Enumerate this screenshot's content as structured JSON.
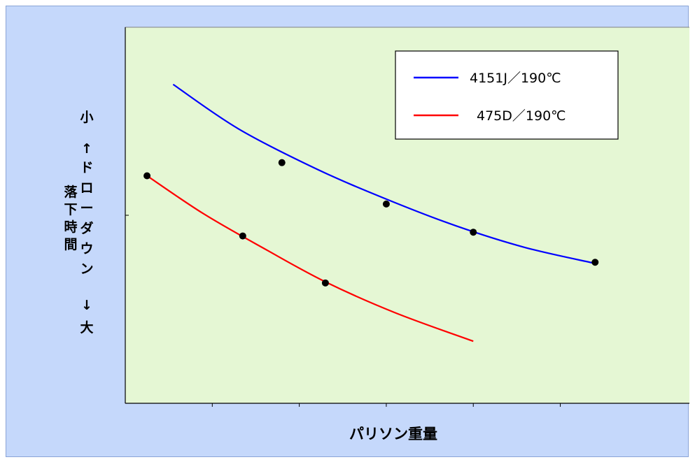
{
  "chart_data": {
    "type": "line",
    "title": "",
    "xlabel": "パリソン重量",
    "ylabel": {
      "top": "小",
      "bottom": "大",
      "arrow_up": "↑",
      "arrow_down": "↓",
      "axis_name": "ドローダウン",
      "sub_name": "落下時間"
    },
    "xlim": [
      0,
      6.5
    ],
    "ylim": [
      0,
      1
    ],
    "grid": false,
    "legend_position": "top-right",
    "series": [
      {
        "name": "4151J／190℃",
        "color": "#0000ff",
        "points": [
          [
            1.8,
            0.64
          ],
          [
            3.0,
            0.53
          ],
          [
            4.0,
            0.455
          ],
          [
            5.4,
            0.375
          ]
        ],
        "curve": [
          [
            0.55,
            0.848
          ],
          [
            1.3,
            0.73
          ],
          [
            2.2,
            0.623
          ],
          [
            3.0,
            0.543
          ],
          [
            3.8,
            0.472
          ],
          [
            4.6,
            0.414
          ],
          [
            5.4,
            0.372
          ]
        ]
      },
      {
        "name": "475D／190℃",
        "color": "#ff0000",
        "points": [
          [
            0.25,
            0.605
          ],
          [
            1.35,
            0.445
          ],
          [
            2.3,
            0.32
          ]
        ],
        "curve": [
          [
            0.25,
            0.605
          ],
          [
            0.9,
            0.504
          ],
          [
            1.6,
            0.411
          ],
          [
            2.3,
            0.323
          ],
          [
            3.1,
            0.241
          ],
          [
            4.0,
            0.165
          ]
        ]
      }
    ]
  }
}
